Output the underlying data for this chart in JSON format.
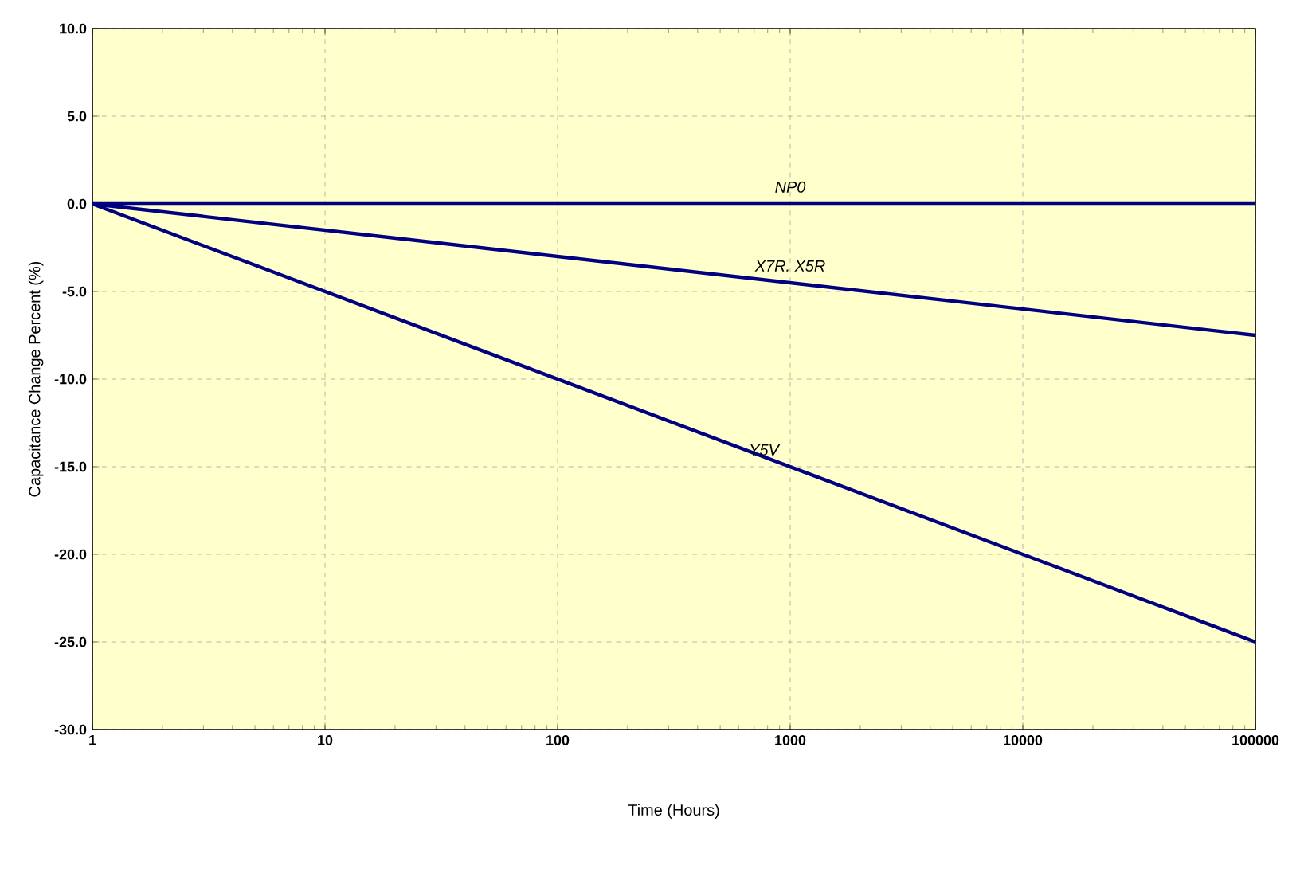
{
  "chart_data": {
    "type": "line",
    "xlabel": "Time (Hours)",
    "ylabel": "Capacitance Change Percent (%)",
    "log": "x",
    "x": [
      1,
      100000
    ],
    "xlim": [
      1,
      100000
    ],
    "xticks": [
      1,
      10,
      100,
      1000,
      10000,
      100000
    ],
    "ylim": [
      -30,
      10
    ],
    "yticks": [
      {
        "value": -30,
        "label": "-30.0"
      },
      {
        "value": -25,
        "label": "-25.0"
      },
      {
        "value": -20,
        "label": "-20.0"
      },
      {
        "value": -15,
        "label": "-15.0"
      },
      {
        "value": -10,
        "label": "-10.0"
      },
      {
        "value": -5,
        "label": "-5.0"
      },
      {
        "value": 0,
        "label": "0.0"
      },
      {
        "value": 5,
        "label": "5.0"
      },
      {
        "value": 10,
        "label": "10.0"
      }
    ],
    "grid": true,
    "legend": false,
    "marker": "none",
    "line_style": "solid",
    "series": [
      {
        "name": "NP0",
        "color": "#000080",
        "values": [
          0,
          0
        ]
      },
      {
        "name": "X7R. X5R",
        "color": "#000080",
        "values": [
          0,
          -7.5
        ]
      },
      {
        "name": "Y5V",
        "color": "#000080",
        "values": [
          0,
          -25
        ]
      }
    ]
  }
}
